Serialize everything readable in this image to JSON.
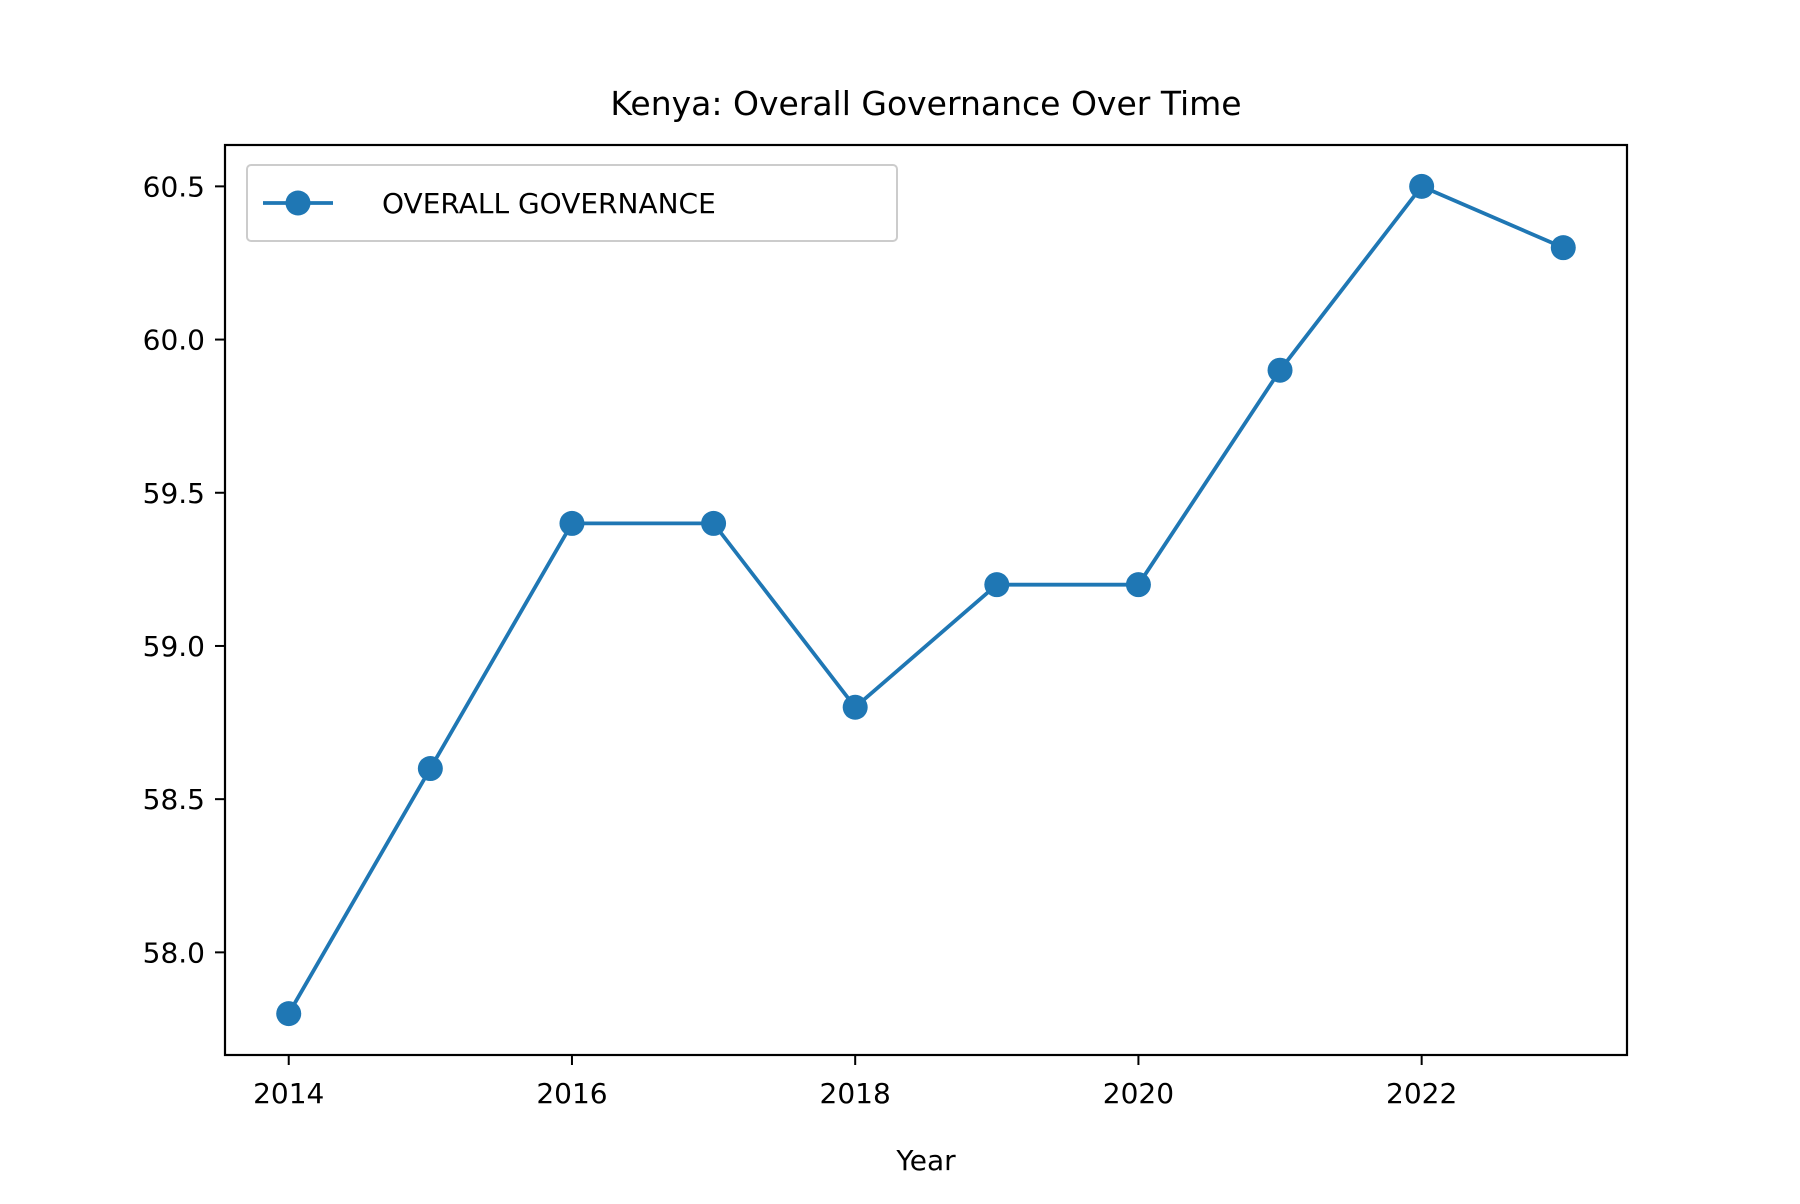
{
  "chart_data": {
    "type": "line",
    "title": "Kenya: Overall Governance Over Time",
    "xlabel": "Year",
    "ylabel": "",
    "x": [
      2014,
      2015,
      2016,
      2017,
      2018,
      2019,
      2020,
      2021,
      2022,
      2023
    ],
    "series": [
      {
        "name": "OVERALL GOVERNANCE",
        "values": [
          57.8,
          58.6,
          59.4,
          59.4,
          58.8,
          59.2,
          59.2,
          59.9,
          60.5,
          60.3
        ],
        "color": "#1f77b4",
        "marker": "circle"
      }
    ],
    "xlim": [
      2013.55,
      2023.45
    ],
    "ylim": [
      57.665,
      60.635
    ],
    "xticks": [
      2014,
      2016,
      2018,
      2020,
      2022
    ],
    "yticks": [
      58.0,
      58.5,
      59.0,
      59.5,
      60.0,
      60.5
    ],
    "ytick_labels": [
      "58.0",
      "58.5",
      "59.0",
      "59.5",
      "60.0",
      "60.5"
    ],
    "xtick_labels": [
      "2014",
      "2016",
      "2018",
      "2020",
      "2022"
    ],
    "grid": false,
    "legend_position": "upper-left"
  }
}
